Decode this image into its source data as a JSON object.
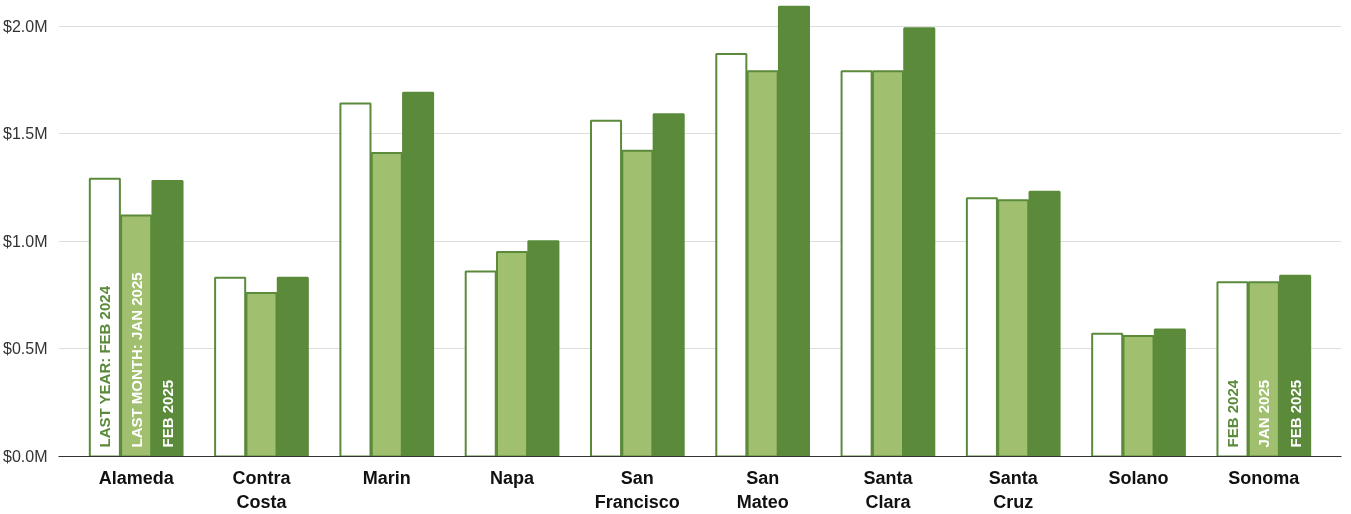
{
  "chart_data": {
    "type": "bar",
    "categories": [
      "Alameda",
      "Contra Costa",
      "Marin",
      "Napa",
      "San Francisco",
      "San Mateo",
      "Santa Clara",
      "Santa Cruz",
      "Solano",
      "Sonoma"
    ],
    "series": [
      {
        "name": "LAST YEAR: FEB 2024",
        "color": "#ffffff",
        "values": [
          1.29,
          0.83,
          1.64,
          0.86,
          1.56,
          1.87,
          1.79,
          1.2,
          0.57,
          0.81
        ]
      },
      {
        "name": "LAST MONTH: JAN 2025",
        "color": "#a0c070",
        "values": [
          1.12,
          0.76,
          1.41,
          0.95,
          1.42,
          1.79,
          1.79,
          1.19,
          0.56,
          0.81
        ]
      },
      {
        "name": "FEB 2025",
        "color": "#5a8a3a",
        "values": [
          1.28,
          0.83,
          1.69,
          1.0,
          1.59,
          2.09,
          1.99,
          1.23,
          0.59,
          0.84
        ]
      }
    ],
    "ylim": [
      0,
      2.1
    ],
    "yticks": [
      {
        "value": 0,
        "label": "$0.0M"
      },
      {
        "value": 0.5,
        "label": "$0.5M"
      },
      {
        "value": 1.0,
        "label": "$1.0M"
      },
      {
        "value": 1.5,
        "label": "$1.5M"
      },
      {
        "value": 2.0,
        "label": "$2.0M"
      }
    ],
    "grid": "y",
    "annotations": [
      "FEB 2024",
      "JAN 2025",
      "FEB 2025"
    ]
  }
}
